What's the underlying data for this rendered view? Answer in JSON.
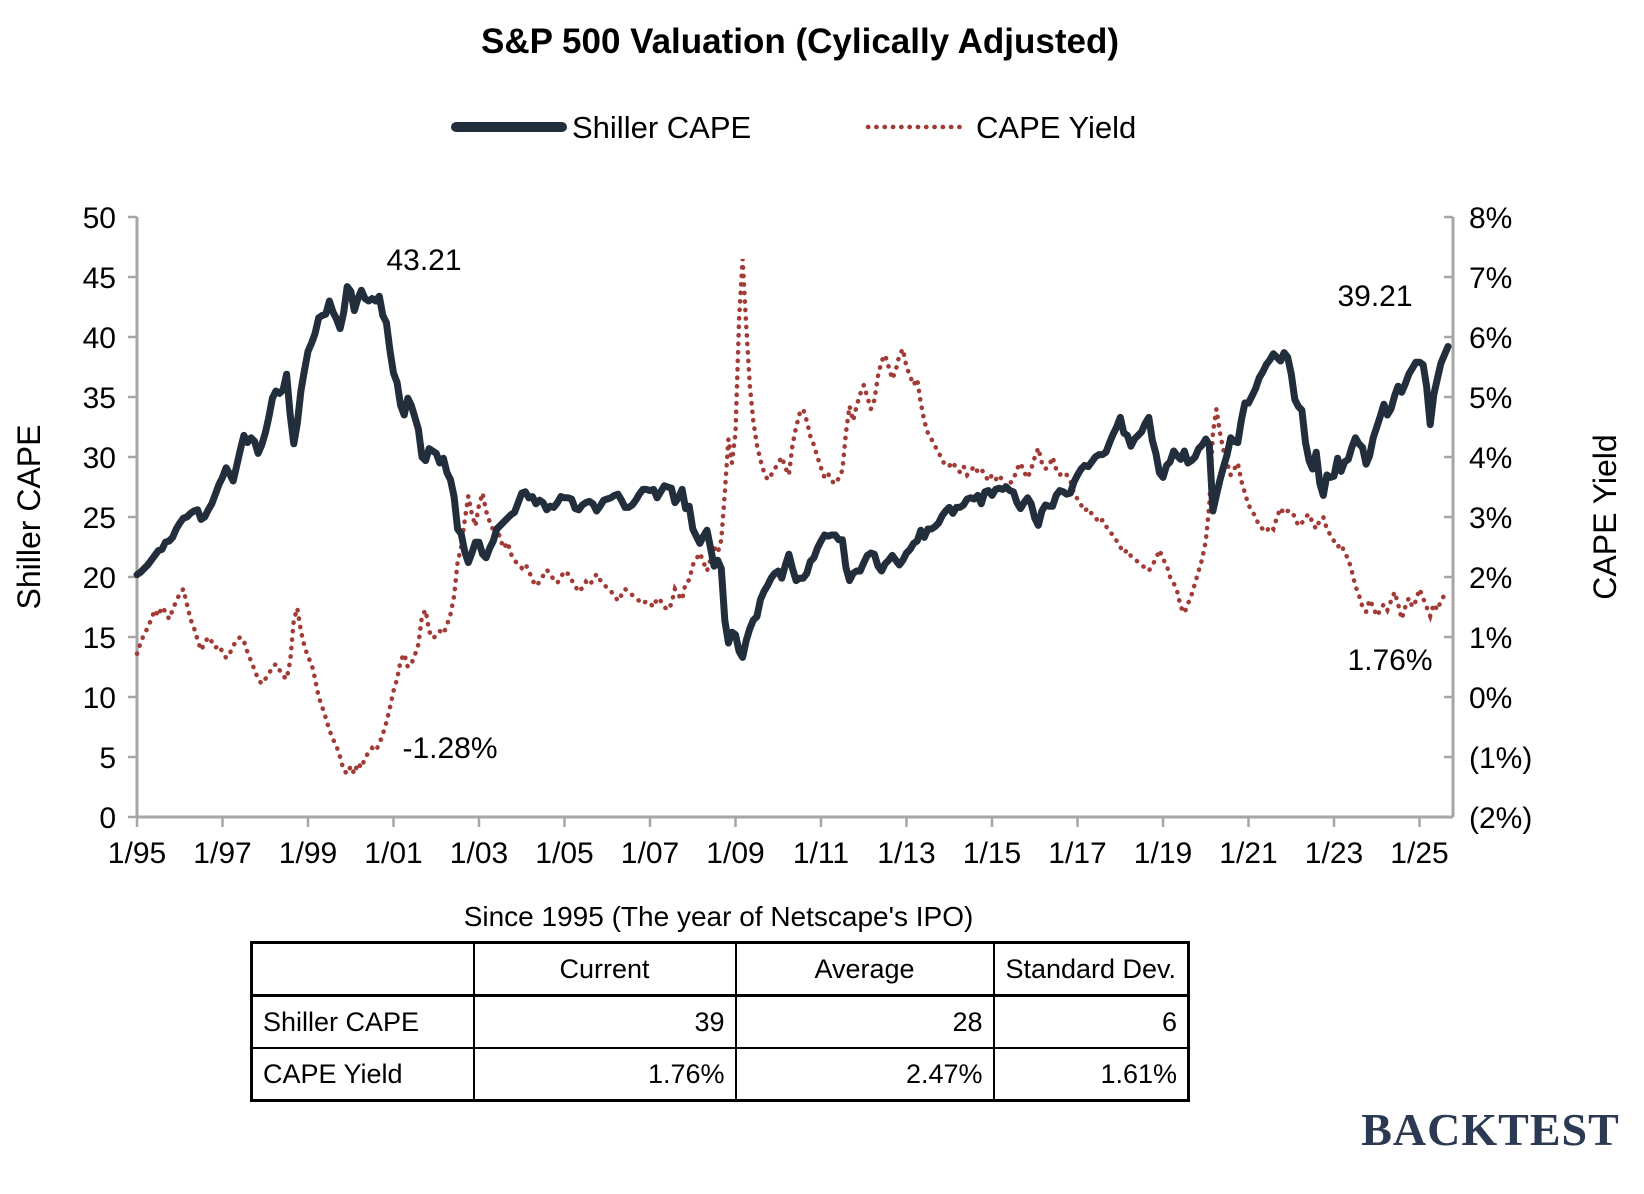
{
  "title": "S&P 500 Valuation (Cylically Adjusted)",
  "chart_data": {
    "type": "line",
    "grid": false,
    "legend_position": "top",
    "x_start": "1/1995",
    "x_end": "9/2025",
    "x_tick_labels": [
      "1/95",
      "1/97",
      "1/99",
      "1/01",
      "1/03",
      "1/05",
      "1/07",
      "1/09",
      "1/11",
      "1/13",
      "1/15",
      "1/17",
      "1/19",
      "1/21",
      "1/23",
      "1/25"
    ],
    "y_axis_left": {
      "title": "Shiller CAPE",
      "min": 0,
      "max": 50,
      "ticks": [
        "50",
        "45",
        "40",
        "35",
        "30",
        "25",
        "20",
        "15",
        "10",
        "5",
        "0"
      ]
    },
    "y_axis_right": {
      "title": "CAPE Yield",
      "min": -2,
      "max": 8,
      "ticks": [
        "8%",
        "7%",
        "6%",
        "5%",
        "4%",
        "3%",
        "2%",
        "1%",
        "0%",
        "(1%)",
        "(2%)"
      ]
    },
    "annotations": {
      "cape_peak": "43.21",
      "yield_trough": "-1.28%",
      "cape_current": "39.21",
      "yield_current": "1.76%"
    },
    "series": [
      {
        "name": "Shiller CAPE",
        "style": "solid",
        "color": "#232e3c",
        "axis": "left",
        "values": [
          20.2,
          20.4,
          20.7,
          21.0,
          21.4,
          21.8,
          22.2,
          22.3,
          22.9,
          23.0,
          23.3,
          24.0,
          24.5,
          24.9,
          25.0,
          25.3,
          25.5,
          25.6,
          24.8,
          25.0,
          25.6,
          26.1,
          26.9,
          27.7,
          28.3,
          29.1,
          28.6,
          28.0,
          29.3,
          30.6,
          31.8,
          31.2,
          31.6,
          31.3,
          30.3,
          31.0,
          32.0,
          33.3,
          34.9,
          35.5,
          35.3,
          35.6,
          36.9,
          33.5,
          31.1,
          32.8,
          35.5,
          37.2,
          38.8,
          39.5,
          40.3,
          41.6,
          41.8,
          41.9,
          43.0,
          42.1,
          41.5,
          40.7,
          42.0,
          44.2,
          43.8,
          42.2,
          43.2,
          43.9,
          43.2,
          43.0,
          43.2,
          43.0,
          43.4,
          41.8,
          41.2,
          38.9,
          37.0,
          36.2,
          34.3,
          33.5,
          34.9,
          34.3,
          33.3,
          32.3,
          30.0,
          29.7,
          30.7,
          30.5,
          30.3,
          29.5,
          29.9,
          28.7,
          28.1,
          26.7,
          24.0,
          23.6,
          22.1,
          21.2,
          22.0,
          22.9,
          22.9,
          21.9,
          21.6,
          22.4,
          23.0,
          24.0,
          24.3,
          24.6,
          24.9,
          25.2,
          25.4,
          26.2,
          27.0,
          27.1,
          26.6,
          26.7,
          26.1,
          26.4,
          26.2,
          25.6,
          25.9,
          25.8,
          26.2,
          26.7,
          26.6,
          26.6,
          26.5,
          25.7,
          25.6,
          26.0,
          26.2,
          26.3,
          26.1,
          25.5,
          25.9,
          26.4,
          26.5,
          26.6,
          26.8,
          26.9,
          26.4,
          25.8,
          25.8,
          26.0,
          26.4,
          26.9,
          27.3,
          27.3,
          27.2,
          27.3,
          26.6,
          27.1,
          27.6,
          27.5,
          27.4,
          26.2,
          26.6,
          27.3,
          25.7,
          25.9,
          24.0,
          23.4,
          22.8,
          23.4,
          23.9,
          22.4,
          20.9,
          21.4,
          20.7,
          16.4,
          14.5,
          15.4,
          15.2,
          13.8,
          13.3,
          14.7,
          15.7,
          16.4,
          16.7,
          18.1,
          18.8,
          19.3,
          19.9,
          20.3,
          20.5,
          19.9,
          21.0,
          21.9,
          20.7,
          19.7,
          19.9,
          19.9,
          20.3,
          21.3,
          21.6,
          22.4,
          23.0,
          23.5,
          23.4,
          23.5,
          23.5,
          23.1,
          23.1,
          20.8,
          19.7,
          20.3,
          20.5,
          20.5,
          21.2,
          21.8,
          22.0,
          21.9,
          20.9,
          20.5,
          21.1,
          21.4,
          21.8,
          21.4,
          21.0,
          21.4,
          22.0,
          22.3,
          22.8,
          23.0,
          23.9,
          23.3,
          24.0,
          24.0,
          24.2,
          24.5,
          25.1,
          25.5,
          25.8,
          25.3,
          25.8,
          25.8,
          26.0,
          26.5,
          26.6,
          26.5,
          26.8,
          26.1,
          27.1,
          27.2,
          26.8,
          27.3,
          27.4,
          27.3,
          27.5,
          27.2,
          27.1,
          26.2,
          25.7,
          26.2,
          26.6,
          26.1,
          24.9,
          24.3,
          25.5,
          26.0,
          25.9,
          25.9,
          26.8,
          27.2,
          27.1,
          26.9,
          27.0,
          27.9,
          28.5,
          29.0,
          29.3,
          29.2,
          29.6,
          30.0,
          30.2,
          30.2,
          30.4,
          31.2,
          31.9,
          32.5,
          33.3,
          32.0,
          31.8,
          30.9,
          31.5,
          31.8,
          32.1,
          32.8,
          33.3,
          31.4,
          30.3,
          28.7,
          28.3,
          29.3,
          29.6,
          30.5,
          30.1,
          29.8,
          30.5,
          29.5,
          29.7,
          30.0,
          30.7,
          31.0,
          31.5,
          31.0,
          25.5,
          26.8,
          28.1,
          29.2,
          30.2,
          31.6,
          31.3,
          31.2,
          33.1,
          34.5,
          34.5,
          35.1,
          35.7,
          36.6,
          37.1,
          37.7,
          38.1,
          38.6,
          38.3,
          38.0,
          38.7,
          38.3,
          36.9,
          34.8,
          34.2,
          33.9,
          31.2,
          29.7,
          29.0,
          30.4,
          27.8,
          26.8,
          28.5,
          28.3,
          28.4,
          29.9,
          28.8,
          29.6,
          29.8,
          30.8,
          31.6,
          31.1,
          30.8,
          29.4,
          30.1,
          31.6,
          32.5,
          33.4,
          34.4,
          33.5,
          34.0,
          35.1,
          35.9,
          35.4,
          36.1,
          36.9,
          37.4,
          37.9,
          37.9,
          37.7,
          35.9,
          32.7,
          35.2,
          36.5,
          37.8,
          38.5,
          39.21
        ]
      },
      {
        "name": "CAPE Yield",
        "style": "dotted",
        "color": "#a23b36",
        "axis": "right",
        "values": [
          0.72,
          0.9,
          1.05,
          1.15,
          1.3,
          1.45,
          1.35,
          1.5,
          1.42,
          1.3,
          1.45,
          1.6,
          1.72,
          1.8,
          1.55,
          1.3,
          1.15,
          0.95,
          0.78,
          0.9,
          1.0,
          0.92,
          0.82,
          0.86,
          0.75,
          0.65,
          0.72,
          0.85,
          0.95,
          1.0,
          0.93,
          0.75,
          0.6,
          0.45,
          0.3,
          0.22,
          0.3,
          0.38,
          0.5,
          0.55,
          0.45,
          0.35,
          0.3,
          0.6,
          1.28,
          1.48,
          1.1,
          0.85,
          0.67,
          0.55,
          0.3,
          0.0,
          -0.17,
          -0.35,
          -0.55,
          -0.7,
          -0.82,
          -1.0,
          -1.22,
          -1.28,
          -1.15,
          -1.28,
          -1.1,
          -1.18,
          -1.02,
          -0.92,
          -0.85,
          -0.9,
          -0.78,
          -0.62,
          -0.42,
          -0.18,
          0.1,
          0.3,
          0.6,
          0.72,
          0.5,
          0.55,
          0.7,
          0.88,
          1.35,
          1.45,
          1.1,
          0.98,
          1.02,
          1.1,
          1.05,
          1.2,
          1.38,
          1.68,
          2.25,
          2.5,
          2.95,
          3.35,
          3.05,
          2.85,
          3.2,
          3.4,
          3.1,
          2.92,
          2.78,
          2.85,
          2.62,
          2.48,
          2.58,
          2.38,
          2.28,
          2.2,
          2.15,
          2.22,
          2.1,
          1.95,
          1.85,
          1.92,
          2.02,
          2.12,
          2.05,
          1.95,
          1.9,
          2.0,
          2.1,
          2.05,
          1.95,
          1.85,
          1.75,
          1.82,
          1.92,
          1.86,
          1.95,
          2.05,
          1.95,
          1.9,
          1.8,
          1.76,
          1.7,
          1.6,
          1.7,
          1.8,
          1.75,
          1.7,
          1.65,
          1.6,
          1.55,
          1.6,
          1.56,
          1.5,
          1.65,
          1.6,
          1.5,
          1.45,
          1.55,
          1.8,
          1.7,
          1.62,
          1.9,
          1.95,
          2.2,
          2.3,
          2.4,
          2.25,
          2.1,
          2.3,
          2.5,
          2.4,
          2.62,
          3.4,
          4.3,
          3.9,
          4.4,
          6.3,
          7.3,
          6.2,
          5.2,
          4.6,
          4.2,
          3.95,
          3.75,
          3.62,
          3.7,
          3.8,
          3.9,
          4.0,
          3.82,
          3.7,
          4.2,
          4.5,
          4.72,
          4.8,
          4.6,
          4.35,
          4.2,
          4.0,
          3.82,
          3.65,
          3.72,
          3.6,
          3.55,
          3.65,
          3.78,
          4.4,
          4.85,
          4.6,
          4.85,
          5.05,
          5.2,
          5.0,
          4.8,
          4.95,
          5.35,
          5.6,
          5.7,
          5.5,
          5.3,
          5.45,
          5.7,
          5.8,
          5.5,
          5.35,
          5.2,
          5.3,
          4.9,
          4.6,
          4.4,
          4.3,
          4.18,
          4.08,
          3.95,
          3.85,
          3.85,
          3.92,
          3.8,
          3.75,
          3.85,
          3.7,
          3.76,
          3.85,
          3.75,
          3.8,
          3.7,
          3.6,
          3.7,
          3.62,
          3.7,
          3.6,
          3.5,
          3.56,
          3.62,
          3.8,
          3.9,
          3.75,
          3.65,
          3.8,
          4.0,
          4.15,
          3.9,
          3.8,
          3.85,
          4.0,
          3.8,
          3.7,
          3.75,
          3.7,
          3.6,
          3.4,
          3.3,
          3.2,
          3.1,
          3.15,
          3.05,
          3.0,
          2.9,
          2.95,
          2.85,
          2.75,
          2.7,
          2.6,
          2.5,
          2.4,
          2.45,
          2.35,
          2.3,
          2.25,
          2.2,
          2.15,
          2.1,
          2.2,
          2.3,
          2.45,
          2.3,
          2.2,
          2.0,
          1.9,
          1.75,
          1.5,
          1.4,
          1.55,
          1.7,
          1.9,
          2.1,
          2.3,
          2.6,
          3.2,
          4.4,
          4.8,
          4.4,
          4.1,
          3.9,
          3.7,
          3.8,
          3.9,
          3.6,
          3.4,
          3.2,
          3.1,
          3.0,
          2.85,
          2.8,
          2.75,
          2.85,
          2.8,
          3.0,
          3.15,
          3.05,
          3.1,
          3.1,
          3.0,
          2.85,
          2.9,
          3.0,
          3.05,
          2.9,
          2.8,
          2.95,
          3.0,
          2.8,
          2.7,
          2.6,
          2.5,
          2.55,
          2.4,
          2.3,
          2.1,
          1.85,
          1.7,
          1.5,
          1.42,
          1.62,
          1.5,
          1.35,
          1.45,
          1.55,
          1.45,
          1.6,
          1.75,
          1.55,
          1.3,
          1.5,
          1.65,
          1.5,
          1.6,
          1.8,
          1.65,
          1.5,
          1.35,
          1.55,
          1.45,
          1.6,
          1.7,
          1.76
        ]
      }
    ]
  },
  "table": {
    "title": "Since 1995 (The year of Netscape's IPO)",
    "columns": [
      "",
      "Current",
      "Average",
      "Standard Dev."
    ],
    "rows": [
      {
        "label": "Shiller CAPE",
        "current": "39",
        "average": "28",
        "std": "6"
      },
      {
        "label": "CAPE Yield",
        "current": "1.76%",
        "average": "2.47%",
        "std": "1.61%"
      }
    ]
  },
  "branding": {
    "logo": "BACKTEST"
  },
  "colors": {
    "cape_line": "#232e3c",
    "yield_line": "#a23b36",
    "axis": "#a6a6a6",
    "logo": "#2b3a52",
    "text": "#000000"
  }
}
